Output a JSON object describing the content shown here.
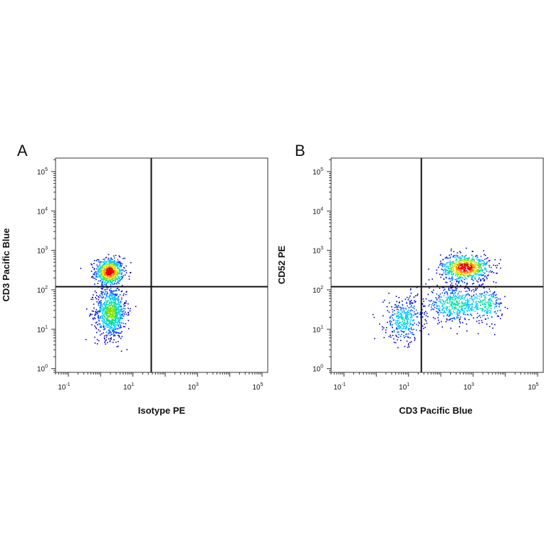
{
  "chart_data": [
    {
      "type": "scatter",
      "panel_label": "A",
      "xlabel": "Isotype PE",
      "ylabel": "CD3 Pacific Blue",
      "x_scale": "log",
      "y_scale": "log",
      "xlim": [
        0.04,
        150000
      ],
      "ylim": [
        0.8,
        220000
      ],
      "x_ticks": [
        {
          "value": 0.1,
          "base": "10",
          "exp": "-1"
        },
        {
          "value": 10,
          "base": "10",
          "exp": "1"
        },
        {
          "value": 1000,
          "base": "10",
          "exp": "3"
        },
        {
          "value": 100000,
          "base": "10",
          "exp": "5"
        }
      ],
      "y_ticks": [
        {
          "value": 1,
          "base": "10",
          "exp": "0"
        },
        {
          "value": 10,
          "base": "10",
          "exp": "1"
        },
        {
          "value": 100,
          "base": "10",
          "exp": "2"
        },
        {
          "value": 1000,
          "base": "10",
          "exp": "3"
        },
        {
          "value": 10000,
          "base": "10",
          "exp": "4"
        },
        {
          "value": 100000,
          "base": "10",
          "exp": "5"
        }
      ],
      "quadrant_gate": {
        "x": 37,
        "y": 120
      },
      "density_colormap": [
        "#0000c8",
        "#0050ff",
        "#00c8ff",
        "#00e0a0",
        "#7ee000",
        "#ffe000",
        "#ff8000",
        "#e00000"
      ],
      "populations": [
        {
          "center_x": 1.8,
          "center_y": 300,
          "spread_x_log10": 0.22,
          "spread_y_log10": 0.17,
          "events": 2600,
          "peak_density": 1.0
        },
        {
          "center_x": 2.0,
          "center_y": 28,
          "spread_x_log10": 0.24,
          "spread_y_log10": 0.33,
          "events": 3400,
          "peak_density": 0.55
        }
      ]
    },
    {
      "type": "scatter",
      "panel_label": "B",
      "xlabel": "CD3 Pacific Blue",
      "ylabel": "CD52 PE",
      "x_scale": "log",
      "y_scale": "log",
      "xlim": [
        0.04,
        150000
      ],
      "ylim": [
        0.8,
        220000
      ],
      "x_ticks": [
        {
          "value": 0.1,
          "base": "10",
          "exp": "-1"
        },
        {
          "value": 10,
          "base": "10",
          "exp": "1"
        },
        {
          "value": 1000,
          "base": "10",
          "exp": "3"
        },
        {
          "value": 100000,
          "base": "10",
          "exp": "5"
        }
      ],
      "y_ticks": [
        {
          "value": 1,
          "base": "10",
          "exp": "0"
        },
        {
          "value": 10,
          "base": "10",
          "exp": "1"
        },
        {
          "value": 100,
          "base": "10",
          "exp": "2"
        },
        {
          "value": 1000,
          "base": "10",
          "exp": "3"
        },
        {
          "value": 10000,
          "base": "10",
          "exp": "4"
        },
        {
          "value": 100000,
          "base": "10",
          "exp": "5"
        }
      ],
      "quadrant_gate": {
        "x": 25,
        "y": 120
      },
      "density_colormap": [
        "#0000c8",
        "#0050ff",
        "#00c8ff",
        "#00e0a0",
        "#7ee000",
        "#ffe000",
        "#ff8000",
        "#e00000"
      ],
      "populations": [
        {
          "center_x": 550,
          "center_y": 380,
          "spread_x_log10": 0.38,
          "spread_y_log10": 0.17,
          "events": 3000,
          "peak_density": 1.0
        },
        {
          "center_x": 7,
          "center_y": 18,
          "spread_x_log10": 0.3,
          "spread_y_log10": 0.28,
          "events": 1500,
          "peak_density": 0.35
        },
        {
          "center_x": 250,
          "center_y": 45,
          "spread_x_log10": 0.45,
          "spread_y_log10": 0.22,
          "events": 2000,
          "peak_density": 0.45
        },
        {
          "center_x": 2500,
          "center_y": 45,
          "spread_x_log10": 0.25,
          "spread_y_log10": 0.22,
          "events": 800,
          "peak_density": 0.4
        }
      ]
    }
  ]
}
